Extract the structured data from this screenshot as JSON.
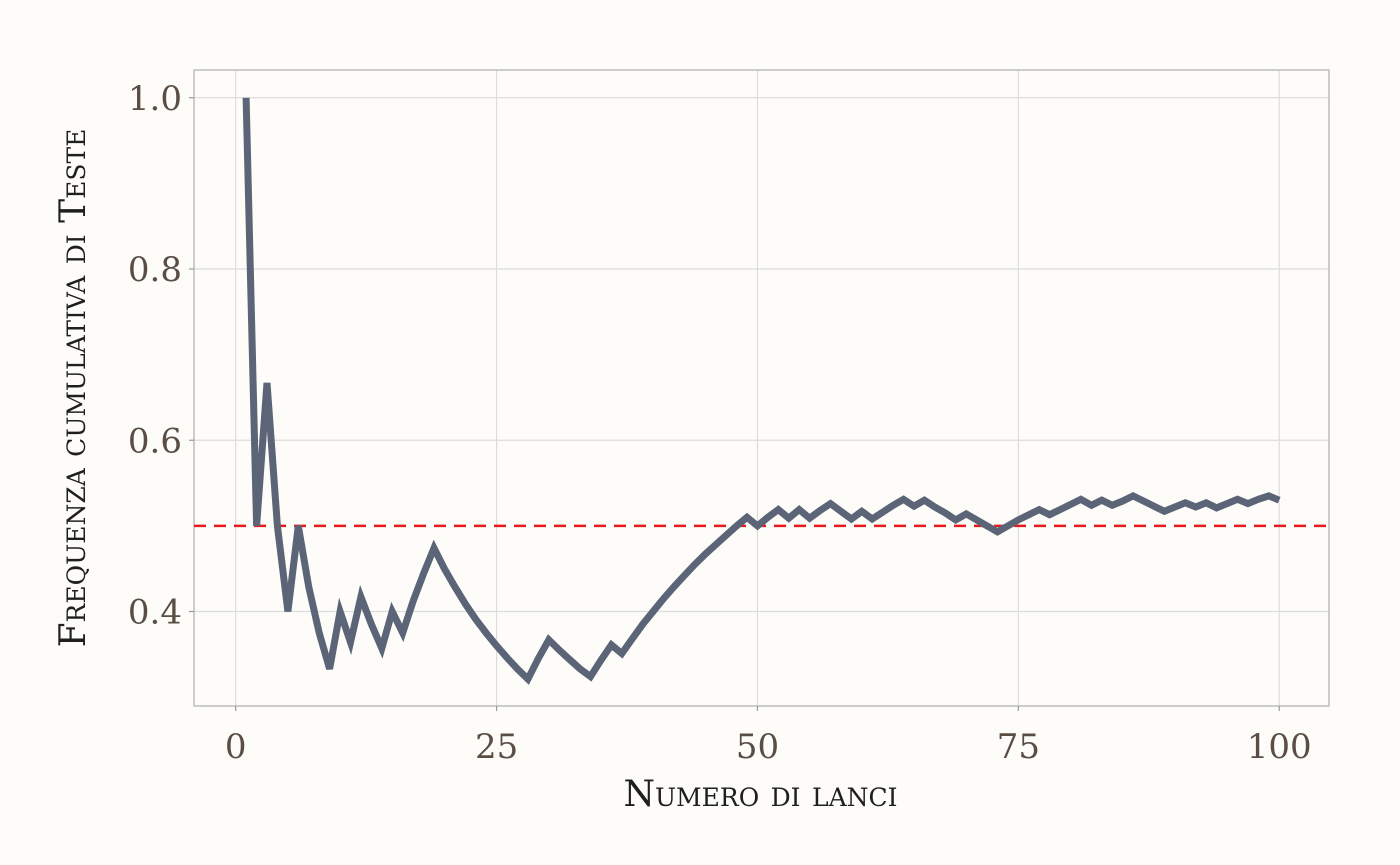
{
  "chart_data": {
    "type": "line",
    "title": "",
    "xlabel": "Numero di lanci",
    "ylabel": "Frequenza cumulativa di Teste",
    "xlim": [
      0,
      100
    ],
    "ylim": [
      0.3,
      1.0
    ],
    "x_ticks": [
      0,
      25,
      50,
      75,
      100
    ],
    "x_tick_labels": [
      "0",
      "25",
      "50",
      "75",
      "100"
    ],
    "y_ticks": [
      0.4,
      0.6,
      0.8,
      1.0
    ],
    "y_tick_labels": [
      "0.4",
      "0.6",
      "0.8",
      "1.0"
    ],
    "grid": true,
    "legend": "none",
    "series": [
      {
        "color": "#5b6577",
        "x": [
          1,
          2,
          3,
          4,
          5,
          6,
          7,
          8,
          9,
          10,
          11,
          12,
          13,
          14,
          15,
          16,
          17,
          18,
          19,
          20,
          21,
          22,
          23,
          24,
          25,
          26,
          27,
          28,
          29,
          30,
          31,
          32,
          33,
          34,
          35,
          36,
          37,
          38,
          39,
          40,
          41,
          42,
          43,
          44,
          45,
          46,
          47,
          48,
          49,
          50,
          51,
          52,
          53,
          54,
          55,
          56,
          57,
          58,
          59,
          60,
          61,
          62,
          63,
          64,
          65,
          66,
          67,
          68,
          69,
          70,
          71,
          72,
          73,
          74,
          75,
          76,
          77,
          78,
          79,
          80,
          81,
          82,
          83,
          84,
          85,
          86,
          87,
          88,
          89,
          90,
          91,
          92,
          93,
          94,
          95,
          96,
          97,
          98,
          99,
          100
        ],
        "y": [
          1.0,
          0.5,
          0.667,
          0.5,
          0.4,
          0.5,
          0.429,
          0.375,
          0.333,
          0.4,
          0.364,
          0.417,
          0.385,
          0.357,
          0.4,
          0.375,
          0.412,
          0.444,
          0.474,
          0.45,
          0.429,
          0.409,
          0.391,
          0.375,
          0.36,
          0.346,
          0.333,
          0.321,
          0.345,
          0.367,
          0.355,
          0.344,
          0.333,
          0.324,
          0.343,
          0.361,
          0.351,
          0.368,
          0.385,
          0.4,
          0.415,
          0.429,
          0.442,
          0.455,
          0.467,
          0.478,
          0.489,
          0.5,
          0.51,
          0.5,
          0.51,
          0.519,
          0.509,
          0.519,
          0.509,
          0.518,
          0.526,
          0.517,
          0.508,
          0.517,
          0.508,
          0.516,
          0.524,
          0.531,
          0.523,
          0.53,
          0.522,
          0.515,
          0.507,
          0.514,
          0.507,
          0.5,
          0.493,
          0.5,
          0.507,
          0.513,
          0.519,
          0.513,
          0.519,
          0.525,
          0.531,
          0.524,
          0.53,
          0.524,
          0.529,
          0.535,
          0.529,
          0.523,
          0.517,
          0.522,
          0.527,
          0.522,
          0.527,
          0.521,
          0.526,
          0.531,
          0.526,
          0.531,
          0.535,
          0.53
        ]
      }
    ],
    "reference_lines": [
      {
        "y": 0.5,
        "color": "#e41a1c",
        "style": "dashed"
      }
    ]
  }
}
